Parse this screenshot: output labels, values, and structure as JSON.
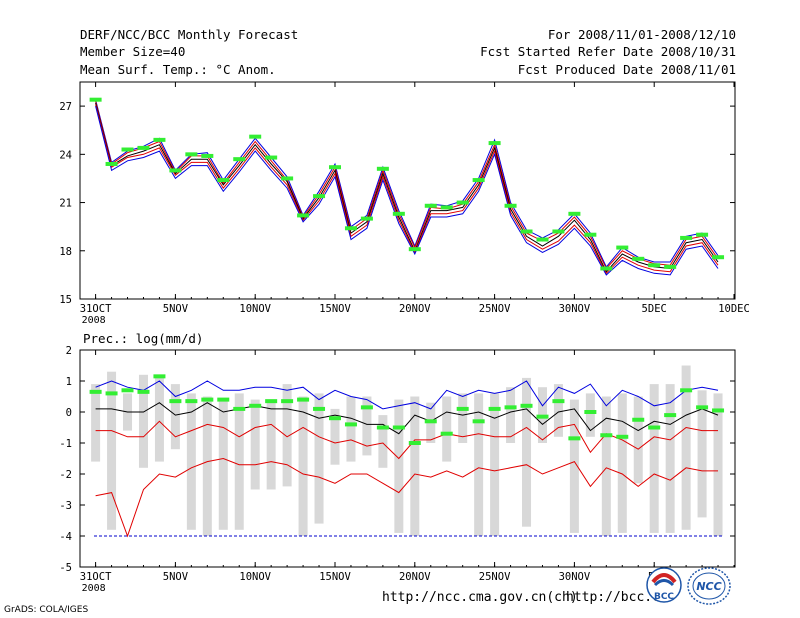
{
  "header": {
    "title": "DERF/NCC/BCC Monthly Forecast",
    "member_size": "Member Size=40",
    "variable": "Mean Surf. Temp.: °C Anom.",
    "period": "For 2008/11/01-2008/12/10",
    "started": "Fcst Started Refer Date 2008/10/31",
    "produced": "Fcst Produced Date 2008/11/01"
  },
  "footer": {
    "url1": "http://ncc.cma.gov.cn(ch)",
    "url2": "http://bcc.c",
    "grads": "GrADS: COLA/IGES",
    "logo_bcc": "BCC",
    "logo_ncc": "NCC"
  },
  "colors": {
    "blue": "#0000e0",
    "red": "#e00000",
    "black": "#000000",
    "green": "#33ee33",
    "gray": "#d8d8d8",
    "dashed": "#0000cc"
  },
  "chart_data": [
    {
      "type": "line",
      "title": "Mean Surf. Temp.: °C Anom.",
      "ylim": [
        15,
        28.5
      ],
      "yticks": [
        15,
        18,
        21,
        24,
        27
      ],
      "x": [
        1,
        2,
        3,
        4,
        5,
        6,
        7,
        8,
        9,
        10,
        11,
        12,
        13,
        14,
        15,
        16,
        17,
        18,
        19,
        20,
        21,
        22,
        23,
        24,
        25,
        26,
        27,
        28,
        29,
        30,
        31,
        32,
        33,
        34,
        35,
        36,
        37,
        38,
        39,
        40
      ],
      "xticks": [
        {
          "x": 1,
          "label": "31OCT",
          "sublabel": "2008"
        },
        {
          "x": 6,
          "label": "5NOV"
        },
        {
          "x": 11,
          "label": "10NOV"
        },
        {
          "x": 16,
          "label": "15NOV"
        },
        {
          "x": 21,
          "label": "20NOV"
        },
        {
          "x": 26,
          "label": "25NOV"
        },
        {
          "x": 31,
          "label": "30NOV"
        },
        {
          "x": 36,
          "label": "5DEC"
        },
        {
          "x": 41,
          "label": "10DEC"
        }
      ],
      "series": [
        {
          "name": "upper",
          "color": "blue",
          "values": [
            27.4,
            23.5,
            24.2,
            24.5,
            25.0,
            23.0,
            24.0,
            24.1,
            22.4,
            23.7,
            25.0,
            23.8,
            22.6,
            20.2,
            21.7,
            23.4,
            19.5,
            20.2,
            23.2,
            20.5,
            18.3,
            20.9,
            20.8,
            21.1,
            22.5,
            24.9,
            21.0,
            19.3,
            18.8,
            19.3,
            20.3,
            19.1,
            17.0,
            18.2,
            17.6,
            17.3,
            17.3,
            18.9,
            19.1,
            17.7
          ]
        },
        {
          "name": "upper-mid",
          "color": "red",
          "values": [
            27.3,
            23.4,
            24.1,
            24.4,
            24.8,
            22.9,
            23.9,
            23.9,
            22.2,
            23.5,
            24.8,
            23.6,
            22.4,
            20.1,
            21.5,
            23.2,
            19.3,
            20.0,
            23.0,
            20.3,
            18.2,
            20.7,
            20.6,
            20.9,
            22.3,
            24.6,
            20.8,
            19.1,
            18.6,
            19.1,
            20.1,
            18.9,
            16.9,
            18.0,
            17.5,
            17.2,
            17.1,
            18.7,
            18.9,
            17.5
          ]
        },
        {
          "name": "median",
          "color": "black",
          "values": [
            27.2,
            23.3,
            23.9,
            24.2,
            24.6,
            22.8,
            23.7,
            23.7,
            22.1,
            23.3,
            24.6,
            23.4,
            22.3,
            20.0,
            21.3,
            23.0,
            19.1,
            19.8,
            22.8,
            20.1,
            18.0,
            20.5,
            20.5,
            20.7,
            22.1,
            24.4,
            20.6,
            18.9,
            18.3,
            18.9,
            19.9,
            18.7,
            16.7,
            17.8,
            17.3,
            17.0,
            16.9,
            18.5,
            18.7,
            17.3
          ]
        },
        {
          "name": "lower-mid",
          "color": "red",
          "values": [
            27.1,
            23.2,
            23.8,
            24.0,
            24.4,
            22.7,
            23.5,
            23.5,
            21.9,
            23.1,
            24.4,
            23.2,
            22.1,
            19.9,
            21.1,
            22.8,
            18.9,
            19.6,
            22.6,
            19.9,
            17.9,
            20.3,
            20.3,
            20.5,
            21.9,
            24.2,
            20.4,
            18.7,
            18.1,
            18.6,
            19.6,
            18.5,
            16.6,
            17.6,
            17.1,
            16.8,
            16.7,
            18.3,
            18.5,
            17.1
          ]
        },
        {
          "name": "lower",
          "color": "blue",
          "values": [
            27.0,
            23.0,
            23.6,
            23.8,
            24.2,
            22.5,
            23.3,
            23.3,
            21.7,
            22.9,
            24.2,
            23.0,
            21.9,
            19.8,
            20.9,
            22.6,
            18.7,
            19.4,
            22.4,
            19.7,
            17.8,
            20.1,
            20.1,
            20.3,
            21.7,
            24.0,
            20.2,
            18.5,
            17.9,
            18.4,
            19.4,
            18.3,
            16.5,
            17.4,
            16.9,
            16.6,
            16.5,
            18.1,
            18.3,
            16.9
          ]
        }
      ],
      "observed_markers": [
        27.4,
        23.4,
        24.3,
        24.4,
        24.9,
        23.0,
        24.0,
        23.9,
        22.4,
        23.7,
        25.1,
        23.8,
        22.5,
        20.2,
        21.4,
        23.2,
        19.4,
        20.0,
        23.1,
        20.3,
        18.1,
        20.8,
        20.7,
        21.0,
        22.4,
        24.7,
        20.8,
        19.2,
        18.7,
        19.2,
        20.3,
        19.0,
        16.9,
        18.2,
        17.5,
        17.1,
        17.0,
        18.8,
        19.0,
        17.6
      ]
    },
    {
      "type": "line",
      "title": "Prec.: log(mm/d)",
      "ylim": [
        -5,
        2
      ],
      "yticks": [
        -5,
        -4,
        -3,
        -2,
        -1,
        0,
        1,
        2
      ],
      "x": [
        1,
        2,
        3,
        4,
        5,
        6,
        7,
        8,
        9,
        10,
        11,
        12,
        13,
        14,
        15,
        16,
        17,
        18,
        19,
        20,
        21,
        22,
        23,
        24,
        25,
        26,
        27,
        28,
        29,
        30,
        31,
        32,
        33,
        34,
        35,
        36,
        37,
        38,
        39,
        40
      ],
      "xticks": [
        {
          "x": 1,
          "label": "31OCT",
          "sublabel": "2008"
        },
        {
          "x": 6,
          "label": "5NOV"
        },
        {
          "x": 11,
          "label": "10NOV"
        },
        {
          "x": 16,
          "label": "15NOV"
        },
        {
          "x": 21,
          "label": "20NOV"
        },
        {
          "x": 26,
          "label": "25NOV"
        },
        {
          "x": 31,
          "label": "30NOV"
        },
        {
          "x": 36,
          "label": "5D"
        }
      ],
      "dashed_line": -4,
      "bars_low": [
        -1.6,
        -3.8,
        -0.6,
        -1.8,
        -1.6,
        -1.2,
        -3.8,
        -4.0,
        -3.8,
        -3.8,
        -2.5,
        -2.5,
        -2.4,
        -4.0,
        -3.6,
        -1.7,
        -1.6,
        -1.4,
        -1.8,
        -3.9,
        -4.0,
        -1.0,
        -1.6,
        -1.0,
        -4.0,
        -4.0,
        -1.0,
        -3.7,
        -1.0,
        -0.8,
        -3.9,
        -0.8,
        -4.0,
        -3.9,
        -2.3,
        -3.9,
        -3.9,
        -3.8,
        -3.4,
        -4.0
      ],
      "bars_high": [
        0.9,
        1.3,
        0.6,
        1.2,
        1.2,
        0.9,
        0.6,
        0.5,
        0.4,
        0.6,
        0.4,
        0.4,
        0.9,
        0.5,
        0.6,
        0.1,
        0.5,
        0.5,
        -0.1,
        0.4,
        0.5,
        0.3,
        0.5,
        0.6,
        0.6,
        0.6,
        0.8,
        1.1,
        0.8,
        0.9,
        0.4,
        0.6,
        0.5,
        0.6,
        0.5,
        0.9,
        0.9,
        1.5,
        0.7,
        0.6
      ],
      "series": [
        {
          "name": "upper",
          "color": "blue",
          "values": [
            0.8,
            1.0,
            0.8,
            0.7,
            1.0,
            0.5,
            0.7,
            1.0,
            0.7,
            0.7,
            0.8,
            0.8,
            0.7,
            0.8,
            0.4,
            0.7,
            0.5,
            0.4,
            0.1,
            0.2,
            0.3,
            0.1,
            0.7,
            0.5,
            0.7,
            0.6,
            0.7,
            1.0,
            0.2,
            0.8,
            0.6,
            0.9,
            0.2,
            0.7,
            0.5,
            0.2,
            0.3,
            0.7,
            0.8,
            0.7
          ]
        },
        {
          "name": "median",
          "color": "black",
          "values": [
            0.1,
            0.1,
            0.0,
            0.0,
            0.3,
            -0.1,
            0.0,
            0.3,
            0.0,
            0.1,
            0.2,
            0.1,
            0.1,
            0.0,
            -0.2,
            -0.1,
            -0.2,
            -0.4,
            -0.4,
            -0.7,
            -0.1,
            -0.3,
            0.0,
            -0.1,
            0.0,
            -0.2,
            0.0,
            0.1,
            -0.4,
            0.0,
            0.1,
            -0.6,
            -0.2,
            -0.3,
            -0.6,
            -0.3,
            -0.4,
            -0.1,
            0.1,
            -0.1
          ]
        },
        {
          "name": "lower-mid",
          "color": "red",
          "values": [
            -0.6,
            -0.6,
            -0.8,
            -0.8,
            -0.3,
            -0.8,
            -0.6,
            -0.4,
            -0.5,
            -0.8,
            -0.5,
            -0.4,
            -0.8,
            -0.5,
            -0.8,
            -1.0,
            -0.9,
            -1.1,
            -1.0,
            -1.5,
            -0.9,
            -0.9,
            -0.7,
            -0.8,
            -0.7,
            -0.8,
            -0.8,
            -0.5,
            -0.9,
            -0.5,
            -0.4,
            -1.3,
            -0.7,
            -0.9,
            -1.2,
            -0.8,
            -0.9,
            -0.5,
            -0.6,
            -0.6
          ]
        },
        {
          "name": "lower",
          "color": "red",
          "values": [
            -2.7,
            -2.6,
            -4.0,
            -2.5,
            -2.0,
            -2.1,
            -1.8,
            -1.6,
            -1.5,
            -1.7,
            -1.7,
            -1.6,
            -1.7,
            -2.0,
            -2.1,
            -2.3,
            -2.0,
            -2.0,
            -2.3,
            -2.6,
            -2.0,
            -2.1,
            -1.9,
            -2.1,
            -1.8,
            -1.9,
            -1.8,
            -1.7,
            -2.0,
            -1.8,
            -1.6,
            -2.4,
            -1.8,
            -2.0,
            -2.4,
            -2.0,
            -2.2,
            -1.8,
            -1.9,
            -1.9
          ]
        }
      ],
      "observed_markers": [
        0.65,
        0.6,
        0.7,
        0.65,
        1.15,
        0.35,
        0.35,
        0.4,
        0.4,
        0.1,
        0.2,
        0.35,
        0.35,
        0.4,
        0.1,
        -0.2,
        -0.4,
        0.15,
        -0.5,
        -0.5,
        -1.0,
        -0.3,
        -0.7,
        0.1,
        -0.3,
        0.1,
        0.15,
        0.2,
        -0.15,
        0.35,
        -0.85,
        0.0,
        -0.75,
        -0.8,
        -0.25,
        -0.5,
        -0.1,
        0.7,
        0.15,
        0.05
      ]
    }
  ]
}
